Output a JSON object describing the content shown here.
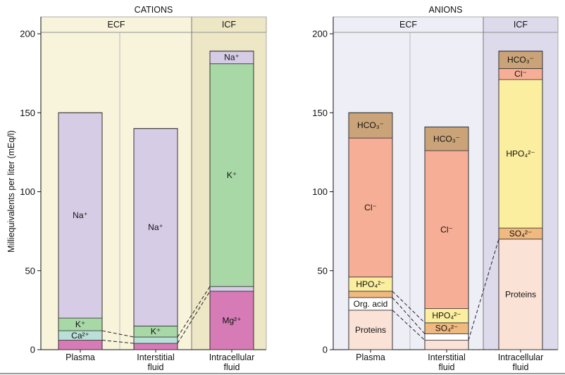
{
  "chart_data": [
    {
      "type": "bar",
      "stacked": true,
      "title": "CATIONS",
      "regions": [
        "ECF",
        "ICF"
      ],
      "ylabel": "Milliequivalents per liter (mEq/l)",
      "ylim": [
        0,
        200
      ],
      "yticks": [
        0,
        50,
        100,
        150,
        200
      ],
      "categories": [
        "Plasma",
        "Interstitial\nfluid",
        "Intracellular\nfluid"
      ],
      "series": [
        {
          "name": "",
          "segments": [
            {
              "label": "",
              "value": 6,
              "color": "#d67bb6"
            },
            {
              "label": "Ca²⁺",
              "value": 6,
              "color": "#b9e0d8"
            },
            {
              "label": "K⁺",
              "value": 8,
              "color": "#a7d8a6"
            },
            {
              "label": "Na⁺",
              "value": 130,
              "color": "#d7cce6"
            }
          ]
        },
        {
          "name": "",
          "segments": [
            {
              "label": "",
              "value": 4,
              "color": "#d67bb6"
            },
            {
              "label": "",
              "value": 4,
              "color": "#b9e0d8"
            },
            {
              "label": "K⁺",
              "value": 7,
              "color": "#a7d8a6"
            },
            {
              "label": "Na⁺",
              "value": 125,
              "color": "#d7cce6"
            }
          ]
        },
        {
          "name": "",
          "segments": [
            {
              "label": "Mg²⁺",
              "value": 37,
              "color": "#d67bb6"
            },
            {
              "label": "",
              "value": 3,
              "color": "#d7cce6"
            },
            {
              "label": "K⁺",
              "value": 141,
              "color": "#a7d8a6"
            },
            {
              "label": "Na⁺",
              "value": 8,
              "color": "#d7cce6"
            }
          ]
        }
      ]
    },
    {
      "type": "bar",
      "stacked": true,
      "title": "ANIONS",
      "regions": [
        "ECF",
        "ICF"
      ],
      "ylim": [
        0,
        200
      ],
      "yticks": [
        0,
        50,
        100,
        150,
        200
      ],
      "categories": [
        "Plasma",
        "Interstitial\nfluid",
        "Intracellular\nfluid"
      ],
      "series": [
        {
          "name": "",
          "segments": [
            {
              "label": "Proteins",
              "value": 25,
              "color": "#fbe2d6"
            },
            {
              "label": "Org. acid",
              "value": 8,
              "color": "#ffffff"
            },
            {
              "label": "",
              "value": 4,
              "color": "#f0b97f"
            },
            {
              "label": "HPO₄²⁻",
              "value": 9,
              "color": "#fbee9e"
            },
            {
              "label": "Cl⁻",
              "value": 88,
              "color": "#f7ae96"
            },
            {
              "label": "HCO₃⁻",
              "value": 16,
              "color": "#caa478"
            }
          ]
        },
        {
          "name": "",
          "segments": [
            {
              "label": "",
              "value": 6,
              "color": "#fbe2d6"
            },
            {
              "label": "",
              "value": 4,
              "color": "#ffffff"
            },
            {
              "label": "SO₄²⁻",
              "value": 7,
              "color": "#f0b97f"
            },
            {
              "label": "HPO₄²⁻",
              "value": 9,
              "color": "#fbee9e"
            },
            {
              "label": "Cl⁻",
              "value": 100,
              "color": "#f7ae96"
            },
            {
              "label": "HCO₃⁻",
              "value": 15,
              "color": "#caa478"
            }
          ]
        },
        {
          "name": "",
          "segments": [
            {
              "label": "Proteins",
              "value": 70,
              "color": "#fbe2d6"
            },
            {
              "label": "SO₄²⁻",
              "value": 7,
              "color": "#f0b97f"
            },
            {
              "label": "HPO₄²⁻",
              "value": 94,
              "color": "#fbee9e"
            },
            {
              "label": "Cl⁻",
              "value": 7,
              "color": "#f7ae96"
            },
            {
              "label": "HCO₃⁻",
              "value": 11,
              "color": "#caa478"
            }
          ]
        }
      ]
    }
  ],
  "colors": {
    "ecf_bg_cations": "#f8f3db",
    "icf_bg_cations": "#ede7c6",
    "ecf_bg_anions": "#eeeef7",
    "icf_bg_anions": "#dcdaeb",
    "axis": "#111111"
  }
}
